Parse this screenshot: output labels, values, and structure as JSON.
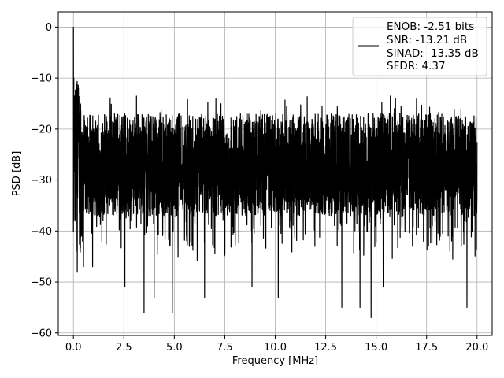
{
  "chart_data": {
    "type": "line",
    "title": "",
    "xlabel": "Frequency [MHz]",
    "ylabel": "PSD [dB]",
    "xlim": [
      -0.75,
      20.75
    ],
    "ylim": [
      -60.5,
      3
    ],
    "xticks": [
      0.0,
      2.5,
      5.0,
      7.5,
      10.0,
      12.5,
      15.0,
      17.5,
      20.0
    ],
    "xtick_labels": [
      "0.0",
      "2.5",
      "5.0",
      "7.5",
      "10.0",
      "12.5",
      "15.0",
      "17.5",
      "20.0"
    ],
    "yticks": [
      0,
      -10,
      -20,
      -30,
      -40,
      -50,
      -60
    ],
    "ytick_labels": [
      "0",
      "−10",
      "−20",
      "−30",
      "−40",
      "−50",
      "−60"
    ],
    "grid": true,
    "legend_position": "top-right",
    "legend_lines": [
      "ENOB: -2.51 bits",
      "SNR: -13.21 dB",
      "SINAD: -13.35 dB",
      "SFDR: 4.37"
    ],
    "series": [
      {
        "color": "#000000",
        "x_range": [
          0,
          20
        ],
        "noise_floor_mean": -27,
        "noise_band": [
          -37,
          -17
        ],
        "peak": {
          "x": 0.0,
          "y": 0.0
        },
        "low_freq_values": [
          {
            "x": 0.03,
            "y": -5
          },
          {
            "x": 0.1,
            "y": -12
          },
          {
            "x": 0.2,
            "y": -10
          },
          {
            "x": 0.35,
            "y": -14
          }
        ],
        "notable_dips": [
          {
            "x": 0.45,
            "y": -42
          },
          {
            "x": 0.5,
            "y": -47
          },
          {
            "x": 0.95,
            "y": -47
          },
          {
            "x": 2.55,
            "y": -51
          },
          {
            "x": 3.5,
            "y": -56
          },
          {
            "x": 4.0,
            "y": -53
          },
          {
            "x": 4.9,
            "y": -56
          },
          {
            "x": 6.5,
            "y": -53
          },
          {
            "x": 8.85,
            "y": -51
          },
          {
            "x": 10.15,
            "y": -53
          },
          {
            "x": 13.3,
            "y": -55
          },
          {
            "x": 14.2,
            "y": -55
          },
          {
            "x": 14.75,
            "y": -57
          },
          {
            "x": 15.35,
            "y": -51
          },
          {
            "x": 19.5,
            "y": -55
          }
        ]
      }
    ]
  }
}
